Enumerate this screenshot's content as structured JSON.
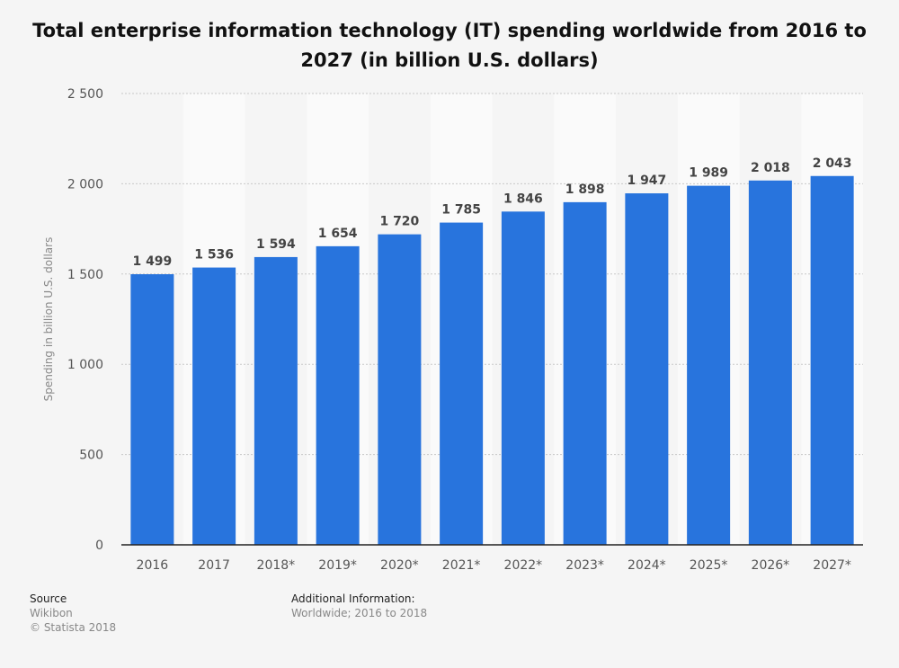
{
  "chart_data": {
    "type": "bar",
    "title": "Total enterprise information technology (IT) spending worldwide from 2016 to 2027 (in billion U.S. dollars)",
    "ylabel": "Spending in billion U.S. dollars",
    "xlabel": "",
    "ylim": [
      0,
      2500
    ],
    "yticks": [
      0,
      500,
      1000,
      1500,
      2000,
      2500
    ],
    "ytick_labels": [
      "0",
      "500",
      "1 000",
      "1 500",
      "2 000",
      "2 500"
    ],
    "grid": true,
    "categories": [
      "2016",
      "2017",
      "2018*",
      "2019*",
      "2020*",
      "2021*",
      "2022*",
      "2023*",
      "2024*",
      "2025*",
      "2026*",
      "2027*"
    ],
    "values": [
      1499,
      1536,
      1594,
      1654,
      1720,
      1785,
      1846,
      1898,
      1947,
      1989,
      2018,
      2043
    ],
    "value_labels": [
      "1 499",
      "1 536",
      "1 594",
      "1 654",
      "1 720",
      "1 785",
      "1 846",
      "1 898",
      "1 947",
      "1 989",
      "2 018",
      "2 043"
    ],
    "bar_color": "#2874dd"
  },
  "footer": {
    "source_heading": "Source",
    "source_name": "Wikibon",
    "copyright": "© Statista 2018",
    "additional_heading": "Additional Information:",
    "additional_text": "Worldwide; 2016 to 2018"
  }
}
